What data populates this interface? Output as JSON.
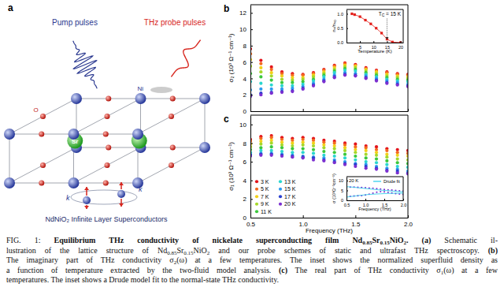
{
  "panel_a": {
    "label": "a",
    "pump_label": "Pump pulses",
    "probe_label": "THz probe pulses",
    "atom_labels": [
      "O",
      "Ni",
      "Sr"
    ],
    "k_labels": [
      "k",
      "k"
    ],
    "title": "NdNiO₂ Infinite Layer Superconductors"
  },
  "chart_data": [
    {
      "type": "scatter",
      "title": "b",
      "marker": "circle",
      "tick_labels": "y",
      "x": [
        0.5,
        0.6,
        0.7,
        0.8,
        0.9,
        1.0,
        1.1,
        1.2,
        1.3,
        1.4,
        1.5,
        1.6,
        1.7,
        1.8,
        1.9,
        2.0
      ],
      "series": [
        {
          "color": "#e3141c",
          "values": [
            7.6,
            6.2,
            5.4,
            4.8,
            4.6,
            4.5,
            4.7,
            5.1,
            5.6,
            5.9,
            5.7,
            5.3,
            5.0,
            4.8,
            4.6,
            4.5
          ]
        },
        {
          "color": "#f46a1f",
          "values": [
            7.0,
            5.8,
            5.1,
            4.6,
            4.4,
            4.4,
            4.6,
            5.0,
            5.5,
            5.8,
            5.6,
            5.2,
            4.9,
            4.7,
            4.5,
            4.4
          ]
        },
        {
          "color": "#f2d01a",
          "values": [
            6.3,
            5.3,
            4.7,
            4.3,
            4.1,
            4.1,
            4.4,
            4.8,
            5.3,
            5.6,
            5.5,
            5.1,
            4.8,
            4.5,
            4.3,
            4.2
          ]
        },
        {
          "color": "#a6d82a",
          "values": [
            5.5,
            4.8,
            4.3,
            3.9,
            3.8,
            3.9,
            4.2,
            4.6,
            5.1,
            5.4,
            5.3,
            4.9,
            4.6,
            4.3,
            4.1,
            4.0
          ]
        },
        {
          "color": "#3cc83c",
          "values": [
            4.6,
            4.2,
            3.8,
            3.5,
            3.5,
            3.6,
            3.9,
            4.4,
            4.9,
            5.2,
            5.1,
            4.7,
            4.4,
            4.1,
            3.9,
            3.8
          ]
        },
        {
          "color": "#2ad7cf",
          "values": [
            3.6,
            3.4,
            3.2,
            3.1,
            3.1,
            3.3,
            3.7,
            4.2,
            4.7,
            5.0,
            4.9,
            4.5,
            4.2,
            3.9,
            3.7,
            3.6
          ]
        },
        {
          "color": "#2e9bef",
          "values": [
            2.6,
            2.7,
            2.7,
            2.7,
            2.8,
            3.0,
            3.4,
            3.9,
            4.4,
            4.7,
            4.6,
            4.3,
            4.0,
            3.7,
            3.5,
            3.3
          ]
        },
        {
          "color": "#2a3fcf",
          "values": [
            2.0,
            2.2,
            2.3,
            2.4,
            2.5,
            2.8,
            3.2,
            3.7,
            4.2,
            4.5,
            4.4,
            4.1,
            3.8,
            3.5,
            3.3,
            3.1
          ]
        },
        {
          "color": "#7b2fd0",
          "values": [
            1.8,
            2.0,
            2.2,
            2.3,
            2.4,
            2.7,
            3.1,
            3.6,
            4.1,
            4.4,
            4.3,
            4.0,
            3.7,
            3.4,
            3.2,
            3.0
          ]
        }
      ],
      "xlim": [
        0.5,
        2.0
      ],
      "xticks": [
        0.5,
        1,
        1.5,
        2
      ],
      "ylim": [
        0,
        13
      ],
      "yticks": [
        0,
        2,
        4,
        6,
        8,
        10,
        12
      ],
      "y_label": "σ₂ (10³ Ω⁻¹ cm⁻¹)"
    },
    {
      "type": "scatter",
      "title": "c",
      "marker": "circle",
      "legend": "lower left",
      "x": [
        0.5,
        0.6,
        0.7,
        0.8,
        0.9,
        1.0,
        1.1,
        1.2,
        1.3,
        1.4,
        1.5,
        1.6,
        1.7,
        1.8,
        1.9,
        2.0
      ],
      "series": [
        {
          "name": "3 K",
          "color": "#e3141c",
          "values": [
            8.4,
            8.7,
            8.8,
            8.6,
            8.5,
            8.6,
            8.5,
            8.3,
            8.2,
            8.0,
            7.9,
            7.7,
            7.6,
            7.4,
            7.3,
            7.2
          ]
        },
        {
          "name": "5 K",
          "color": "#f46a1f",
          "values": [
            8.2,
            8.5,
            8.6,
            8.4,
            8.3,
            8.4,
            8.3,
            8.1,
            8.0,
            7.8,
            7.6,
            7.5,
            7.3,
            7.2,
            7.0,
            6.9
          ]
        },
        {
          "name": "7 K",
          "color": "#f2d01a",
          "values": [
            7.9,
            8.2,
            8.3,
            8.1,
            8.0,
            8.1,
            8.0,
            7.8,
            7.7,
            7.5,
            7.3,
            7.2,
            7.0,
            6.8,
            6.7,
            6.6
          ]
        },
        {
          "name": "9 K",
          "color": "#a6d82a",
          "values": [
            7.6,
            7.9,
            8.0,
            7.8,
            7.7,
            7.8,
            7.7,
            7.5,
            7.4,
            7.2,
            7.0,
            6.8,
            6.7,
            6.5,
            6.3,
            6.2
          ]
        },
        {
          "name": "11 K",
          "color": "#3cc83c",
          "values": [
            7.3,
            7.5,
            7.6,
            7.5,
            7.4,
            7.4,
            7.3,
            7.1,
            7.0,
            6.8,
            6.6,
            6.4,
            6.3,
            6.1,
            5.9,
            5.8
          ]
        },
        {
          "name": "13 K",
          "color": "#2ad7cf",
          "values": [
            7.0,
            7.2,
            7.2,
            7.1,
            7.0,
            7.0,
            6.9,
            6.7,
            6.6,
            6.4,
            6.2,
            6.0,
            5.9,
            5.7,
            5.5,
            5.4
          ]
        },
        {
          "name": "15 K",
          "color": "#2e9bef",
          "values": [
            6.8,
            6.9,
            6.9,
            6.8,
            6.7,
            6.6,
            6.5,
            6.4,
            6.2,
            6.0,
            5.8,
            5.7,
            5.5,
            5.3,
            5.2,
            5.0
          ]
        },
        {
          "name": "17 K",
          "color": "#2a3fcf",
          "values": [
            6.7,
            6.8,
            6.8,
            6.7,
            6.6,
            6.5,
            6.4,
            6.2,
            6.0,
            5.8,
            5.7,
            5.5,
            5.3,
            5.1,
            5.0,
            4.8
          ]
        },
        {
          "name": "20 K",
          "color": "#7b2fd0",
          "values": [
            6.6,
            6.7,
            6.7,
            6.6,
            6.5,
            6.4,
            6.2,
            6.1,
            5.9,
            5.7,
            5.5,
            5.3,
            5.2,
            5.0,
            4.8,
            4.7
          ]
        }
      ],
      "xlim": [
        0.5,
        2.0
      ],
      "xticks": [
        0.5,
        {
          "value": 1,
          "label": "1.0"
        },
        1.5,
        {
          "value": 2,
          "label": "2.0"
        }
      ],
      "ylim": [
        0,
        11
      ],
      "yticks": [
        0,
        2,
        4,
        6,
        8,
        10
      ],
      "x_label": "Frequency (THz)",
      "y_label": "σ₁ (10³ Ω⁻¹ cm⁻¹)"
    },
    {
      "type": "line",
      "marker": "square",
      "color": "#e3201b",
      "x": [
        2,
        3,
        5,
        7,
        9,
        11,
        13,
        15,
        17,
        20
      ],
      "values": [
        1.0,
        0.97,
        0.9,
        0.78,
        0.65,
        0.5,
        0.33,
        0.12,
        0.02,
        0.0
      ],
      "xlim": [
        0,
        21
      ],
      "xticks": [
        5,
        10,
        15,
        20
      ],
      "ylim": [
        0,
        1.15
      ],
      "yticks": [
        {
          "value": 0,
          "label": "0.0"
        },
        0.5,
        {
          "value": 1,
          "label": "1.0"
        }
      ],
      "x_label": "Temperature (K)",
      "y_label": "nₛ/nₛ₀",
      "annotation": [
        "T",
        "C",
        " = 15 K"
      ],
      "tc": 15
    },
    {
      "type": "scatter",
      "marker": "circle",
      "legend": "upper right",
      "x": [
        0.5,
        0.6,
        0.7,
        0.8,
        0.9,
        1.0,
        1.1,
        1.2,
        1.3,
        1.4,
        1.5,
        1.6,
        1.7,
        1.8,
        1.9,
        2.0
      ],
      "series": [
        {
          "color": "#7b2fd0",
          "values": [
            6.6,
            6.7,
            6.7,
            6.6,
            6.5,
            6.4,
            6.2,
            6.1,
            5.9,
            5.7,
            5.5,
            5.3,
            5.2,
            5.0,
            4.8,
            4.7
          ]
        },
        {
          "color": "#7b2fd0",
          "values": [
            1.8,
            2.0,
            2.2,
            2.3,
            2.4,
            2.7,
            3.1,
            3.6,
            4.1,
            4.4,
            4.3,
            4.0,
            3.7,
            3.4,
            3.2,
            3.0
          ]
        },
        {
          "name": "Drude fit",
          "type": "line",
          "color": "#35d0ec",
          "values": [
            6.9,
            6.8,
            6.6,
            6.4,
            6.2,
            6.0,
            5.8,
            5.6,
            5.4,
            5.2,
            5.0,
            4.9,
            4.7,
            4.6,
            4.4,
            4.3
          ]
        },
        {
          "type": "line",
          "color": "#35d0ec",
          "values": [
            1.6,
            1.9,
            2.1,
            2.4,
            2.6,
            2.8,
            3.0,
            3.1,
            3.2,
            3.3,
            3.4,
            3.5,
            3.5,
            3.6,
            3.6,
            3.6
          ]
        }
      ],
      "xlim": [
        0.5,
        2.0
      ],
      "xticks": [
        0.5,
        {
          "value": 1,
          "label": "1.0"
        },
        1.5,
        {
          "value": 2,
          "label": "2.0"
        }
      ],
      "ylim": [
        0,
        12
      ],
      "yticks": [
        0,
        5,
        10
      ],
      "x_label": "Frequency (THz)",
      "y_label": "σ (10³Ω⁻¹cm⁻¹)",
      "annotation": "20 K"
    }
  ],
  "caption": {
    "lines": [
      [
        {
          "text": "FIG. 1: ",
          "style": "plain"
        },
        {
          "text": "Equilibrium THz conductivity of nickelate superconducting film Nd",
          "style": "bold"
        },
        {
          "text": "0.85",
          "style": "bold-sub"
        },
        {
          "text": "Sr",
          "style": "bold"
        },
        {
          "text": "0.15",
          "style": "bold-sub"
        },
        {
          "text": "NiO",
          "style": "bold"
        },
        {
          "text": "2",
          "style": "bold-sub"
        },
        {
          "text": ". (a)",
          "style": "bold"
        },
        {
          "text": " Schematic il-",
          "style": "plain"
        }
      ],
      [
        {
          "text": "lustration of the lattice structure of Nd",
          "style": "plain"
        },
        {
          "text": "0.85",
          "style": "sub"
        },
        {
          "text": "Sr",
          "style": "plain"
        },
        {
          "text": "0.15",
          "style": "sub"
        },
        {
          "text": "NiO",
          "style": "plain"
        },
        {
          "text": "2",
          "style": "sub"
        },
        {
          "text": " and our probe schemes of static and ultrafast THz spectroscopy. ",
          "style": "plain"
        },
        {
          "text": "(b)",
          "style": "bold"
        }
      ],
      [
        {
          "text": "The imaginary part of THz conductivity σ",
          "style": "plain"
        },
        {
          "text": "2",
          "style": "sub"
        },
        {
          "text": "(ω) at a few temperatures. The inset shows the normalized superfluid density as",
          "style": "plain"
        }
      ],
      [
        {
          "text": "a function of temperature extracted by the two-fluid model analysis. ",
          "style": "plain"
        },
        {
          "text": "(c)",
          "style": "bold"
        },
        {
          "text": " The real part of THz conductivity σ",
          "style": "plain"
        },
        {
          "text": "1",
          "style": "sub"
        },
        {
          "text": "(ω) at a few",
          "style": "plain"
        }
      ],
      [
        {
          "text": "temperatures. The inset shows a Drude model fit to the normal-state THz conductivity.",
          "style": "plain"
        }
      ]
    ]
  }
}
